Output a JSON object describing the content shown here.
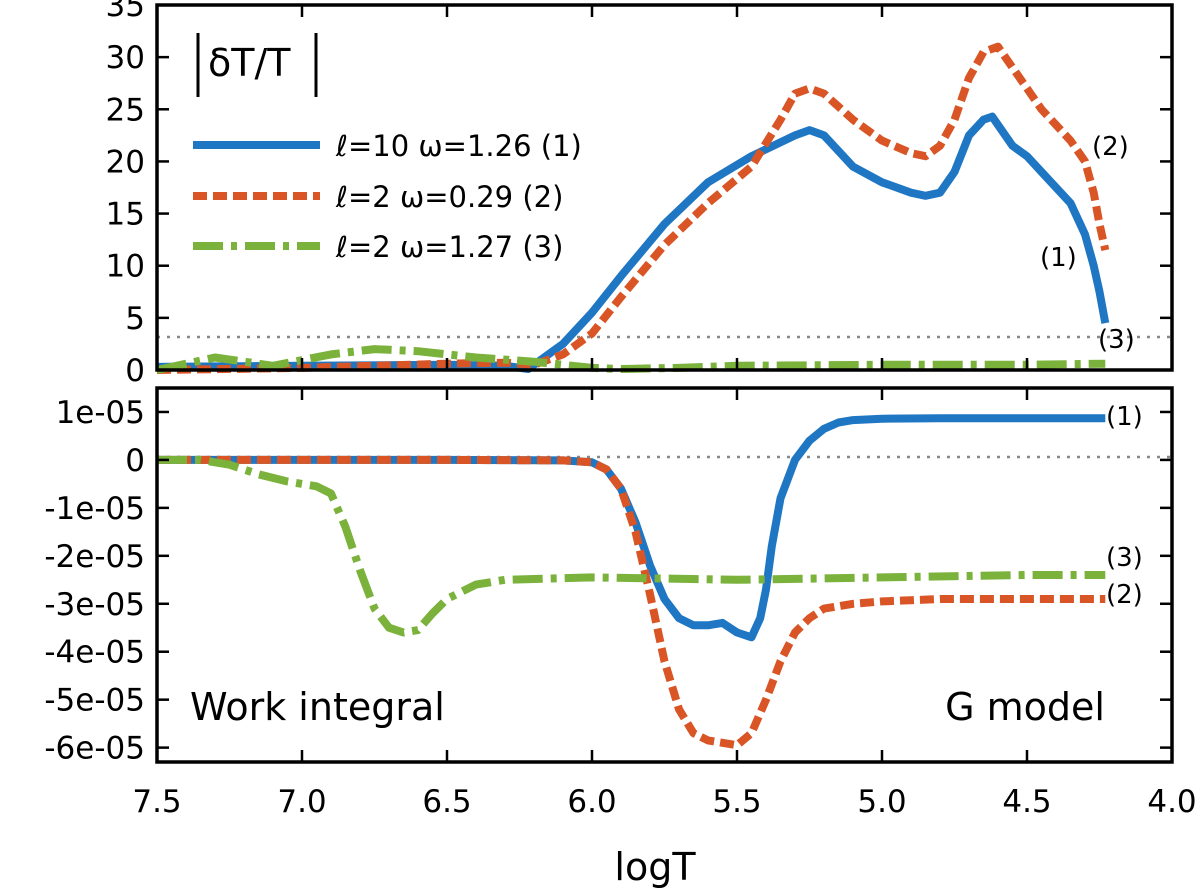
{
  "chart_data": [
    {
      "type": "line",
      "panel": "top",
      "title": "|δT/T|",
      "xlabel": "",
      "ylabel": "",
      "xlim": [
        7.5,
        4.0
      ],
      "ylim": [
        0,
        35
      ],
      "yticks": [
        0,
        5,
        10,
        15,
        20,
        25,
        30,
        35
      ],
      "ytick_labels": [
        "0",
        "5",
        "10",
        "15",
        "20",
        "25",
        "30",
        "35"
      ],
      "zero_line": true,
      "legend": {
        "placement": "top-left"
      },
      "series": [
        {
          "name": "ℓ=10 ω=1.26 (1)",
          "tag": "(1)",
          "color": "#1f77c4",
          "style": "solid",
          "x": [
            7.5,
            7.0,
            6.5,
            6.3,
            6.22,
            6.1,
            6.0,
            5.9,
            5.75,
            5.6,
            5.45,
            5.3,
            5.25,
            5.2,
            5.1,
            5.0,
            4.9,
            4.85,
            4.8,
            4.75,
            4.7,
            4.65,
            4.62,
            4.6,
            4.55,
            4.5,
            4.45,
            4.4,
            4.35,
            4.3,
            4.27,
            4.25,
            4.23
          ],
          "y": [
            0.3,
            0.4,
            0.5,
            0.4,
            0.1,
            2.5,
            5.5,
            9,
            14,
            18,
            20.5,
            22.5,
            23,
            22.5,
            19.5,
            18,
            17,
            16.7,
            17,
            19,
            22.5,
            24,
            24.3,
            23.5,
            21.5,
            20.5,
            19,
            17.5,
            16,
            13,
            10,
            7.5,
            4.5
          ]
        },
        {
          "name": "ℓ=2 ω=0.29 (2)",
          "tag": "(2)",
          "color": "#d95525",
          "style": "dashed",
          "x": [
            7.5,
            7.0,
            6.5,
            6.3,
            6.2,
            6.1,
            6.0,
            5.9,
            5.75,
            5.6,
            5.45,
            5.35,
            5.3,
            5.25,
            5.2,
            5.1,
            5.0,
            4.9,
            4.85,
            4.8,
            4.75,
            4.7,
            4.65,
            4.6,
            4.55,
            4.5,
            4.45,
            4.4,
            4.35,
            4.3,
            4.27,
            4.25,
            4.23
          ],
          "y": [
            0,
            0.2,
            0.6,
            0.7,
            0.5,
            1.5,
            3.5,
            7,
            12,
            16,
            19.5,
            24,
            26.5,
            27,
            26.5,
            24,
            22,
            20.8,
            20.5,
            21.5,
            24,
            28,
            30.5,
            31,
            29,
            27,
            25,
            23.5,
            22,
            20,
            17,
            14,
            11.5
          ]
        },
        {
          "name": "ℓ=2 ω=1.27 (3)",
          "tag": "(3)",
          "color": "#7ab23b",
          "style": "dashdot",
          "x": [
            7.5,
            7.3,
            7.1,
            6.9,
            6.75,
            6.6,
            6.4,
            6.2,
            6.0,
            5.9,
            5.7,
            5.5,
            5.0,
            4.5,
            4.23
          ],
          "y": [
            0,
            1.2,
            0.4,
            1.5,
            2,
            1.8,
            1.2,
            0.8,
            0.2,
            0.1,
            0.2,
            0.4,
            0.5,
            0.5,
            0.6
          ]
        }
      ]
    },
    {
      "type": "line",
      "panel": "bottom",
      "title": "",
      "annotations": [
        "Work integral",
        "G model"
      ],
      "xlabel": "logT",
      "ylabel": "",
      "xlim": [
        7.5,
        4.0
      ],
      "xticks": [
        7.5,
        7.0,
        6.5,
        6.0,
        5.5,
        5.0,
        4.5,
        4.0
      ],
      "xtick_labels": [
        "7.5",
        "7.0",
        "6.5",
        "6.0",
        "5.5",
        "5.0",
        "4.5",
        "4.0"
      ],
      "ylim": [
        -6.3e-05,
        1.5e-05
      ],
      "yticks": [
        1e-05,
        0,
        -1e-05,
        -2e-05,
        -3e-05,
        -4e-05,
        -5e-05,
        -6e-05
      ],
      "ytick_labels": [
        "1e-05",
        "0",
        "-1e-05",
        "-2e-05",
        "-3e-05",
        "-4e-05",
        "-5e-05",
        "-6e-05"
      ],
      "zero_line": true,
      "series": [
        {
          "name": "ℓ=10 ω=1.26 (1)",
          "tag": "(1)",
          "color": "#1f77c4",
          "style": "solid",
          "x": [
            7.5,
            6.5,
            6.1,
            6.0,
            5.95,
            5.9,
            5.85,
            5.8,
            5.75,
            5.7,
            5.65,
            5.6,
            5.55,
            5.5,
            5.45,
            5.42,
            5.4,
            5.38,
            5.35,
            5.3,
            5.25,
            5.2,
            5.15,
            5.1,
            5.0,
            4.8,
            4.5,
            4.23
          ],
          "y": [
            0,
            0,
            -1e-07,
            -5e-07,
            -2e-06,
            -6e-06,
            -1.3e-05,
            -2.2e-05,
            -2.9e-05,
            -3.3e-05,
            -3.45e-05,
            -3.45e-05,
            -3.4e-05,
            -3.6e-05,
            -3.7e-05,
            -3.3e-05,
            -2.7e-05,
            -1.8e-05,
            -8e-06,
            0,
            4e-06,
            6.5e-06,
            7.8e-06,
            8.3e-06,
            8.6e-06,
            8.7e-06,
            8.7e-06,
            8.7e-06
          ]
        },
        {
          "name": "ℓ=2 ω=0.29 (2)",
          "tag": "(2)",
          "color": "#d95525",
          "style": "dashed",
          "x": [
            7.5,
            6.5,
            6.1,
            6.0,
            5.95,
            5.9,
            5.85,
            5.8,
            5.75,
            5.7,
            5.65,
            5.6,
            5.55,
            5.5,
            5.45,
            5.4,
            5.35,
            5.3,
            5.25,
            5.2,
            5.1,
            5.0,
            4.8,
            4.5,
            4.23
          ],
          "y": [
            0,
            0,
            -1e-07,
            -5e-07,
            -2e-06,
            -6e-06,
            -1.5e-05,
            -2.8e-05,
            -4.2e-05,
            -5.2e-05,
            -5.7e-05,
            -5.85e-05,
            -5.9e-05,
            -5.95e-05,
            -5.7e-05,
            -5e-05,
            -4.2e-05,
            -3.6e-05,
            -3.3e-05,
            -3.1e-05,
            -3e-05,
            -2.95e-05,
            -2.9e-05,
            -2.9e-05,
            -2.9e-05
          ]
        },
        {
          "name": "ℓ=2 ω=1.27 (3)",
          "tag": "(3)",
          "color": "#7ab23b",
          "style": "dashdot",
          "x": [
            7.5,
            7.35,
            7.25,
            7.15,
            7.05,
            6.95,
            6.9,
            6.85,
            6.8,
            6.75,
            6.7,
            6.65,
            6.6,
            6.55,
            6.5,
            6.4,
            6.3,
            6.0,
            5.5,
            5.0,
            4.5,
            4.23
          ],
          "y": [
            0,
            0,
            -1e-06,
            -3e-06,
            -4.5e-06,
            -5.5e-06,
            -7e-06,
            -1.4e-05,
            -2.3e-05,
            -3.1e-05,
            -3.5e-05,
            -3.6e-05,
            -3.55e-05,
            -3.2e-05,
            -2.9e-05,
            -2.6e-05,
            -2.5e-05,
            -2.45e-05,
            -2.5e-05,
            -2.45e-05,
            -2.4e-05,
            -2.4e-05
          ]
        }
      ]
    }
  ]
}
